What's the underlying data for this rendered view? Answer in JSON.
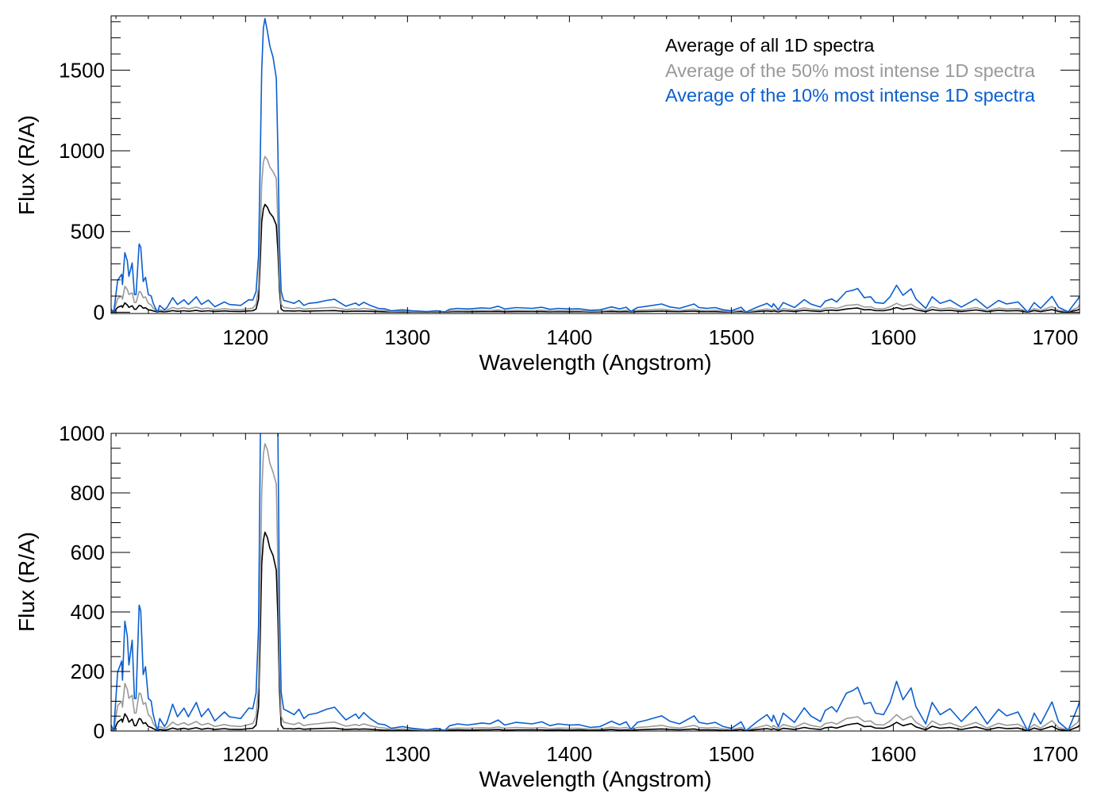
{
  "chart_data": {
    "type": "line",
    "xlabel": "Wavelength (Angstrom)",
    "ylabel": "Flux (R/A)",
    "xlim": [
      1117,
      1715
    ],
    "xticks": [
      "1200",
      "1300",
      "1400",
      "1500",
      "1600",
      "1700"
    ],
    "legend": {
      "placement": "top-right of upper panel",
      "entries": [
        {
          "label": "Average of all 1D spectra",
          "color": "#000000"
        },
        {
          "label": "Average of the 50% most intense 1D spectra",
          "color": "#999999"
        },
        {
          "label": "Average of the 10% most intense 1D spectra",
          "color": "#0b5fd0"
        }
      ]
    },
    "panels": [
      {
        "ylim": [
          -8,
          1836
        ],
        "yticks": [
          "0",
          "500",
          "1000",
          "1500"
        ],
        "ytick_step": 500,
        "yminor_step": 100
      },
      {
        "ylim": [
          0,
          1000
        ],
        "yticks": [
          "0",
          "200",
          "400",
          "600",
          "800",
          "1000"
        ],
        "ytick_step": 200,
        "yminor_step": 50
      }
    ],
    "x": [
      1117,
      1118.6,
      1121,
      1123.5,
      1124,
      1125.5,
      1127,
      1128,
      1130,
      1131.4,
      1132.4,
      1134.3,
      1135.3,
      1136.8,
      1138.2,
      1140,
      1141.7,
      1143,
      1145.6,
      1147,
      1150,
      1151.5,
      1155,
      1158,
      1162,
      1164.7,
      1169.6,
      1172.8,
      1177,
      1181,
      1187,
      1190,
      1197,
      1202,
      1204.5,
      1206.5,
      1208,
      1209,
      1210,
      1211,
      1212,
      1213.5,
      1215,
      1217,
      1219,
      1220,
      1221,
      1222,
      1223.5,
      1227,
      1230,
      1233,
      1236,
      1239,
      1244,
      1250,
      1255,
      1259,
      1262,
      1268,
      1270,
      1273,
      1277,
      1282,
      1286,
      1290,
      1297,
      1303,
      1312,
      1318,
      1323,
      1326,
      1331,
      1337,
      1346,
      1351,
      1356,
      1360,
      1367,
      1377,
      1383,
      1388,
      1393,
      1400,
      1406,
      1413,
      1419,
      1426,
      1431,
      1435,
      1438,
      1442,
      1448,
      1457,
      1462,
      1468,
      1477,
      1480,
      1485,
      1490,
      1495,
      1500,
      1506,
      1509,
      1516,
      1522,
      1525,
      1526,
      1529,
      1532,
      1539,
      1545,
      1549,
      1555,
      1558,
      1562,
      1565,
      1571,
      1575,
      1578,
      1582,
      1586,
      1589,
      1594,
      1598,
      1602,
      1606,
      1611,
      1614,
      1620,
      1624,
      1629,
      1635,
      1642,
      1651,
      1658,
      1665,
      1670,
      1677,
      1683,
      1687,
      1691,
      1698,
      1702,
      1708,
      1714,
      1715
    ],
    "series": [
      {
        "name": "Average of all 1D spectra",
        "color": "#000000",
        "values": [
          3,
          0,
          30,
          40,
          30,
          58,
          45,
          30,
          40,
          18,
          18,
          42,
          40,
          25,
          28,
          15,
          12,
          8,
          2,
          5,
          3,
          4,
          10,
          6,
          9,
          6,
          11,
          6,
          9,
          5,
          8,
          6,
          5,
          8,
          9,
          20,
          80,
          300,
          560,
          640,
          668,
          650,
          615,
          590,
          540,
          380,
          130,
          20,
          8,
          8,
          7,
          9,
          6,
          7,
          8,
          9,
          10,
          7,
          5,
          7,
          6,
          7,
          6,
          4,
          3,
          2,
          2,
          2,
          1,
          2,
          1,
          3,
          4,
          3,
          4,
          4,
          5,
          3,
          4,
          4,
          4,
          3,
          4,
          3,
          4,
          2,
          3,
          5,
          3,
          4,
          2,
          4,
          5,
          7,
          5,
          4,
          7,
          4,
          4,
          4,
          2,
          2,
          5,
          1,
          5,
          8,
          5,
          8,
          3,
          9,
          5,
          12,
          8,
          5,
          11,
          13,
          10,
          20,
          24,
          26,
          15,
          16,
          10,
          9,
          16,
          29,
          18,
          25,
          14,
          4,
          16,
          9,
          12,
          5,
          14,
          4,
          12,
          8,
          10,
          1,
          10,
          4,
          16,
          5,
          1,
          14,
          20
        ]
      },
      {
        "name": "Average of the 50% most intense 1D spectra",
        "color": "#999999",
        "values": [
          8,
          0,
          85,
          100,
          80,
          160,
          140,
          110,
          120,
          60,
          60,
          128,
          125,
          90,
          95,
          55,
          45,
          25,
          5,
          15,
          8,
          12,
          30,
          20,
          28,
          20,
          32,
          20,
          26,
          15,
          22,
          18,
          15,
          22,
          25,
          50,
          150,
          450,
          800,
          930,
          965,
          945,
          900,
          870,
          830,
          550,
          200,
          50,
          30,
          25,
          22,
          28,
          18,
          22,
          24,
          28,
          30,
          22,
          16,
          22,
          18,
          24,
          18,
          12,
          10,
          5,
          7,
          5,
          3,
          5,
          3,
          8,
          10,
          9,
          11,
          10,
          14,
          9,
          12,
          10,
          12,
          8,
          10,
          9,
          9,
          6,
          7,
          13,
          9,
          12,
          5,
          12,
          14,
          19,
          13,
          10,
          19,
          12,
          10,
          12,
          7,
          5,
          12,
          3,
          12,
          20,
          12,
          19,
          8,
          22,
          12,
          27,
          19,
          13,
          25,
          29,
          23,
          42,
          45,
          48,
          32,
          34,
          22,
          20,
          34,
          55,
          37,
          50,
          29,
          10,
          34,
          20,
          27,
          13,
          29,
          10,
          26,
          19,
          23,
          5,
          22,
          10,
          35,
          12,
          4,
          30,
          47
        ]
      },
      {
        "name": "Average of the 10% most intense 1D spectra",
        "color": "#0b5fd0",
        "values": [
          20,
          0,
          198,
          235,
          171,
          369,
          318,
          222,
          305,
          109,
          109,
          423,
          404,
          190,
          216,
          109,
          101,
          55,
          0,
          42,
          15,
          29,
          90,
          48,
          77,
          48,
          96,
          48,
          75,
          34,
          64,
          48,
          42,
          77,
          75,
          128,
          350,
          900,
          1500,
          1760,
          1820,
          1740,
          1650,
          1580,
          1450,
          1000,
          400,
          130,
          74,
          64,
          55,
          73,
          42,
          55,
          60,
          73,
          80,
          55,
          37,
          57,
          42,
          62,
          42,
          24,
          21,
          9,
          15,
          9,
          4,
          9,
          2,
          18,
          24,
          20,
          27,
          24,
          37,
          20,
          29,
          24,
          31,
          18,
          24,
          20,
          21,
          12,
          15,
          33,
          21,
          31,
          6,
          29,
          37,
          51,
          33,
          24,
          51,
          29,
          24,
          29,
          15,
          9,
          31,
          1,
          32,
          55,
          32,
          53,
          15,
          60,
          29,
          78,
          51,
          32,
          69,
          82,
          64,
          127,
          136,
          147,
          91,
          96,
          60,
          55,
          96,
          167,
          105,
          145,
          82,
          24,
          96,
          55,
          75,
          32,
          82,
          24,
          73,
          51,
          64,
          1,
          60,
          24,
          98,
          31,
          3,
          82,
          100
        ]
      }
    ]
  }
}
